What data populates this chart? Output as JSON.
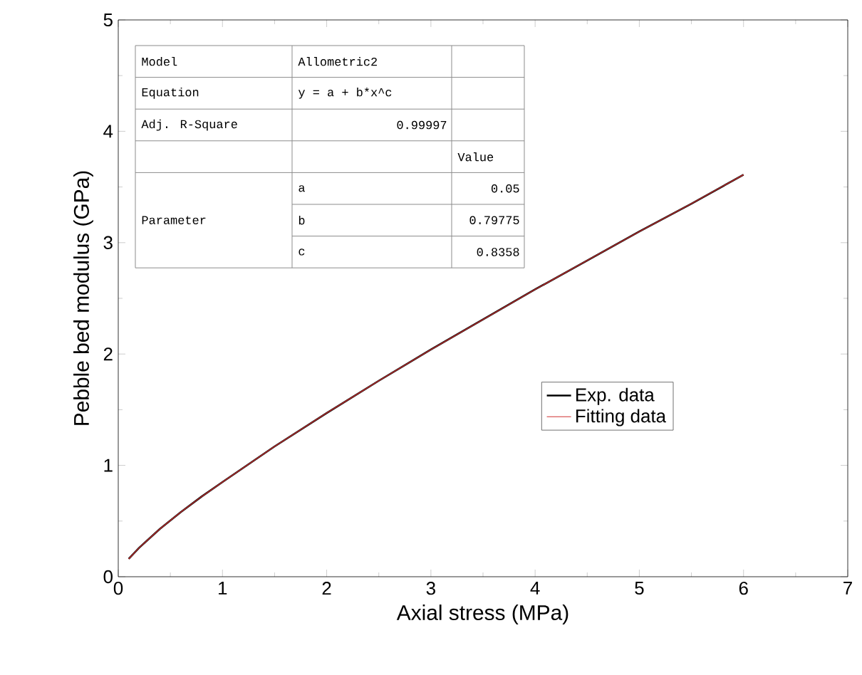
{
  "chart_data": {
    "type": "line",
    "xlabel": "Axial stress (MPa)",
    "ylabel": "Pebble bed modulus (GPa)",
    "xlim": [
      0,
      7
    ],
    "xticks": [
      0,
      1,
      2,
      3,
      4,
      5,
      6,
      7
    ],
    "ylim": [
      0,
      5
    ],
    "yticks": [
      0,
      1,
      2,
      3,
      4,
      5
    ],
    "grid": false,
    "legend": "right",
    "marker": "none",
    "line_style": "solid",
    "x": [
      0.1,
      0.2,
      0.4,
      0.6,
      0.8,
      1,
      1.5,
      2,
      2.5,
      3,
      3.5,
      4,
      4.5,
      5,
      5.5,
      6
    ],
    "series": [
      {
        "name": "Exp. data",
        "color": "#000000",
        "values": [
          0.16,
          0.26,
          0.43,
          0.58,
          0.72,
          0.85,
          1.17,
          1.47,
          1.76,
          2.04,
          2.31,
          2.58,
          2.84,
          3.1,
          3.35,
          3.61
        ]
      },
      {
        "name": "Fitting data",
        "color": "#d03030",
        "values": [
          0.16,
          0.26,
          0.43,
          0.58,
          0.72,
          0.85,
          1.17,
          1.47,
          1.76,
          2.04,
          2.31,
          2.58,
          2.84,
          3.1,
          3.35,
          3.61
        ]
      }
    ],
    "annotations": [
      "Model",
      "Allometric2",
      "Equation",
      "y = a + b*x^c",
      "Adj. R-Square",
      "0.99997",
      "Value",
      "Parameter",
      "a",
      "0.05",
      "b",
      "0.79775",
      "c",
      "0.8358"
    ]
  }
}
